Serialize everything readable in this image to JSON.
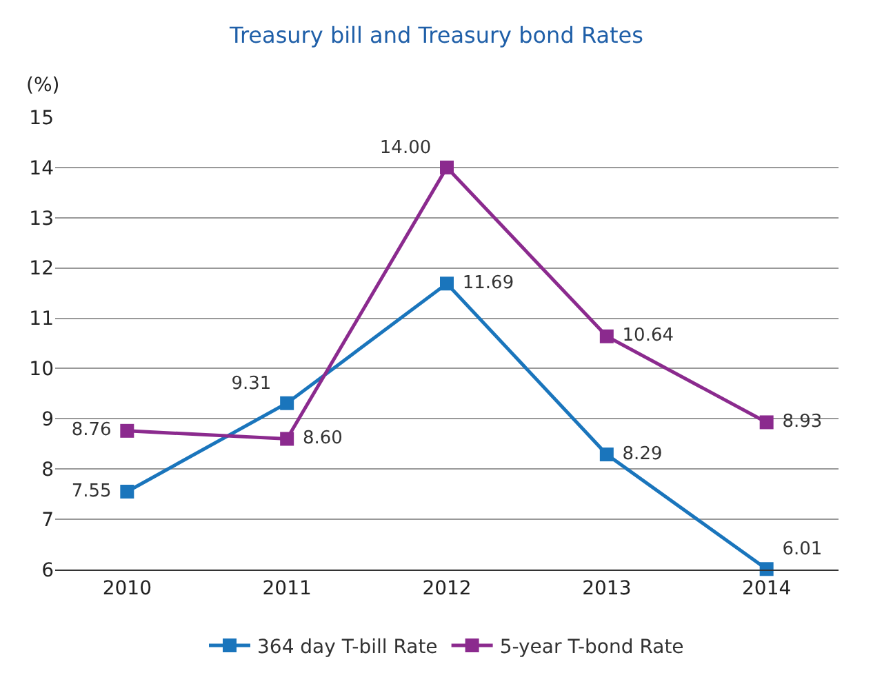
{
  "chart_data": {
    "type": "line",
    "title": "Treasury bill and Treasury bond Rates",
    "ylabel": "(%)",
    "categories": [
      "2010",
      "2011",
      "2012",
      "2013",
      "2014"
    ],
    "series": [
      {
        "name": "364 day T-bill Rate",
        "color": "#1a75bc",
        "values": [
          7.55,
          9.31,
          11.69,
          8.29,
          6.01
        ],
        "value_labels": [
          "7.55",
          "9.31",
          "11.69",
          "8.29",
          "6.01"
        ]
      },
      {
        "name": "5-year T-bond Rate",
        "color": "#8b2a8e",
        "values": [
          8.76,
          8.6,
          14.0,
          10.64,
          8.93
        ],
        "value_labels": [
          "8.76",
          "8.60",
          "14.00",
          "10.64",
          "8.93"
        ]
      }
    ],
    "ylim": [
      6,
      15
    ],
    "yticks": [
      6,
      7,
      8,
      9,
      10,
      11,
      12,
      13,
      14,
      15
    ],
    "grid": "y",
    "legend": "bottom",
    "marker": "square",
    "line_style": "solid"
  }
}
